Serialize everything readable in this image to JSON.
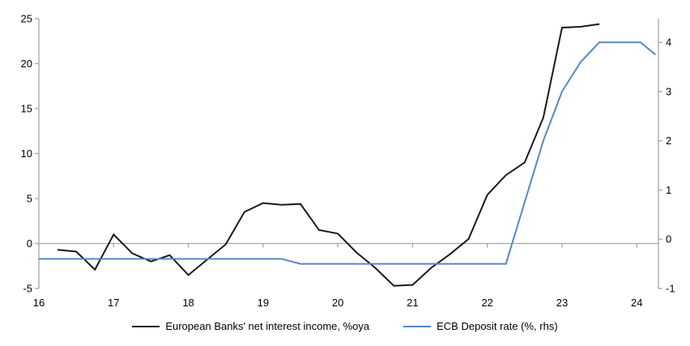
{
  "chart_data": {
    "type": "line",
    "title": "",
    "xlabel": "",
    "ylabel_left": "",
    "ylabel_right": "",
    "grid": false,
    "legend_position": "bottom",
    "x_axis": {
      "range": [
        16,
        24.29
      ],
      "tick_labels": [
        "16",
        "17",
        "18",
        "19",
        "20",
        "21",
        "22",
        "23",
        "24"
      ],
      "tick_values": [
        16,
        17,
        18,
        19,
        20,
        21,
        22,
        23,
        24
      ]
    },
    "left_axis": {
      "range": [
        -5,
        25
      ],
      "tick_labels": [
        "25",
        "20",
        "15",
        "10",
        "5",
        "0",
        "-5"
      ],
      "tick_values": [
        25,
        20,
        15,
        10,
        5,
        0,
        -5
      ],
      "zero_line": true
    },
    "right_axis": {
      "range": [
        -1,
        4.48
      ],
      "tick_labels": [
        "4",
        "3",
        "2",
        "1",
        "0",
        "-1"
      ],
      "tick_values": [
        4,
        3,
        2,
        1,
        0,
        -1
      ]
    },
    "series": [
      {
        "name": "European Banks' net interest income, %oya",
        "axis": "left",
        "color": "#1a1a1a",
        "width": 2,
        "points": [
          [
            16.25,
            -0.7
          ],
          [
            16.5,
            -0.9
          ],
          [
            16.75,
            -2.9
          ],
          [
            17.0,
            1.0
          ],
          [
            17.25,
            -1.1
          ],
          [
            17.5,
            -2.0
          ],
          [
            17.75,
            -1.3
          ],
          [
            18.0,
            -3.5
          ],
          [
            18.25,
            -1.8
          ],
          [
            18.5,
            -0.1
          ],
          [
            18.75,
            3.5
          ],
          [
            19.0,
            4.5
          ],
          [
            19.25,
            4.3
          ],
          [
            19.5,
            4.4
          ],
          [
            19.75,
            1.5
          ],
          [
            20.0,
            1.1
          ],
          [
            20.25,
            -1.0
          ],
          [
            20.5,
            -2.7
          ],
          [
            20.75,
            -4.7
          ],
          [
            21.0,
            -4.6
          ],
          [
            21.25,
            -2.7
          ],
          [
            21.5,
            -1.2
          ],
          [
            21.75,
            0.5
          ],
          [
            22.0,
            5.4
          ],
          [
            22.25,
            7.6
          ],
          [
            22.5,
            9.0
          ],
          [
            22.75,
            14.0
          ],
          [
            23.0,
            24.0
          ],
          [
            23.25,
            24.1
          ],
          [
            23.5,
            24.4
          ]
        ]
      },
      {
        "name": "ECB Deposit rate (%, rhs)",
        "axis": "right",
        "color": "#5488c7",
        "width": 2,
        "points": [
          [
            16.0,
            -0.4
          ],
          [
            19.25,
            -0.4
          ],
          [
            19.5,
            -0.5
          ],
          [
            22.25,
            -0.5
          ],
          [
            22.5,
            0.75
          ],
          [
            22.75,
            2.0
          ],
          [
            23.0,
            3.0
          ],
          [
            23.25,
            3.6
          ],
          [
            23.5,
            4.0
          ],
          [
            24.05,
            4.0
          ],
          [
            24.25,
            3.75
          ]
        ]
      }
    ]
  },
  "legend": {
    "series1_label": "European Banks' net interest income, %oya",
    "series2_label": "ECB Deposit rate (%, rhs)"
  },
  "colors": {
    "series1": "#1a1a1a",
    "series2": "#5488c7",
    "axis": "#a6a6a6",
    "text": "#000000",
    "background": "#ffffff"
  }
}
